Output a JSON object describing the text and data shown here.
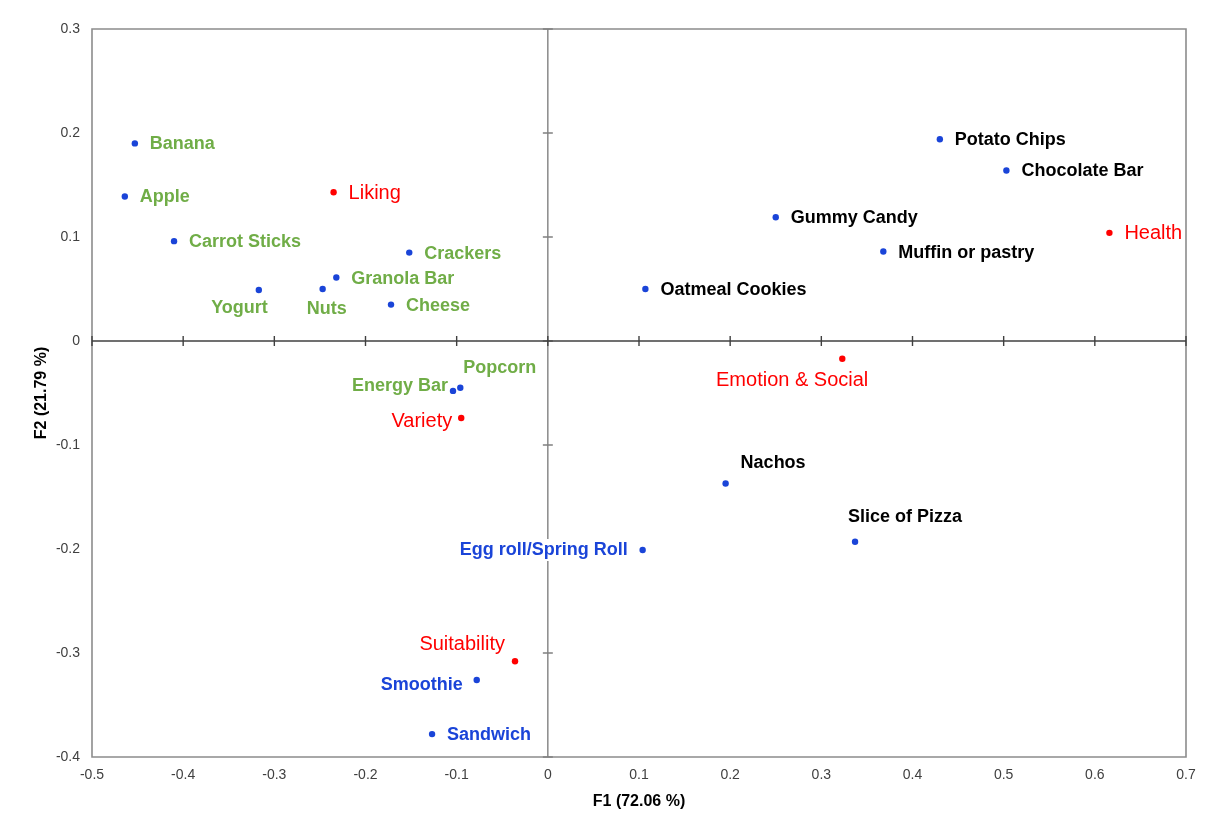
{
  "chart_data": {
    "type": "scatter",
    "xlabel": "F1 (72.06 %)",
    "ylabel": "F2 (21.79 %)",
    "xlim": [
      -0.5,
      0.7
    ],
    "ylim": [
      -0.4,
      0.3
    ],
    "xticks": [
      -0.5,
      -0.4,
      -0.3,
      -0.2,
      -0.1,
      0,
      0.1,
      0.2,
      0.3,
      0.4,
      0.5,
      0.6,
      0.7
    ],
    "yticks": [
      -0.4,
      -0.3,
      -0.2,
      -0.1,
      0,
      0.1,
      0.2,
      0.3
    ],
    "marker": "circle",
    "ref_lines": [
      {
        "axis": "x",
        "value": 0,
        "color": "#808080"
      },
      {
        "axis": "y",
        "value": 0,
        "color": "#404040"
      }
    ],
    "series": [
      {
        "color": "#1a44d8",
        "x": [
          -0.453,
          -0.464,
          -0.41,
          -0.317,
          -0.247,
          -0.232,
          -0.152,
          -0.172,
          -0.104,
          -0.096
        ],
        "values": [
          0.19,
          0.139,
          0.096,
          0.049,
          0.05,
          0.061,
          0.085,
          0.035,
          -0.048,
          -0.045
        ],
        "value_labels": [
          "Banana",
          "Apple",
          "Carrot Sticks",
          "Yogurt",
          "Nuts",
          "Granola Bar",
          "Crackers",
          "Cheese",
          "Energy Bar",
          "Popcorn"
        ]
      },
      {
        "color": "#1a44d8",
        "x": [
          0.43,
          0.503,
          0.25,
          0.368,
          0.107,
          0.195,
          0.337
        ],
        "values": [
          0.194,
          0.164,
          0.119,
          0.086,
          0.05,
          -0.137,
          -0.193
        ],
        "value_labels": [
          "Potato Chips",
          "Chocolate Bar",
          "Gummy Candy",
          "Muffin or pastry",
          "Oatmeal Cookies",
          "Nachos",
          "Slice of Pizza"
        ]
      },
      {
        "color": "#1a44d8",
        "x": [
          0.104,
          -0.078,
          -0.127
        ],
        "values": [
          -0.201,
          -0.326,
          -0.378
        ],
        "value_labels": [
          "Egg roll/Spring Roll",
          "Smoothie",
          "Sandwich"
        ]
      },
      {
        "color": "#ff0000",
        "x": [
          -0.235,
          0.616,
          0.323,
          -0.095,
          -0.036
        ],
        "values": [
          0.143,
          0.104,
          -0.017,
          -0.074,
          -0.308
        ],
        "value_labels": [
          "Liking",
          "Health",
          "Emotion & Social",
          "Variety",
          "Suitability"
        ]
      }
    ]
  }
}
